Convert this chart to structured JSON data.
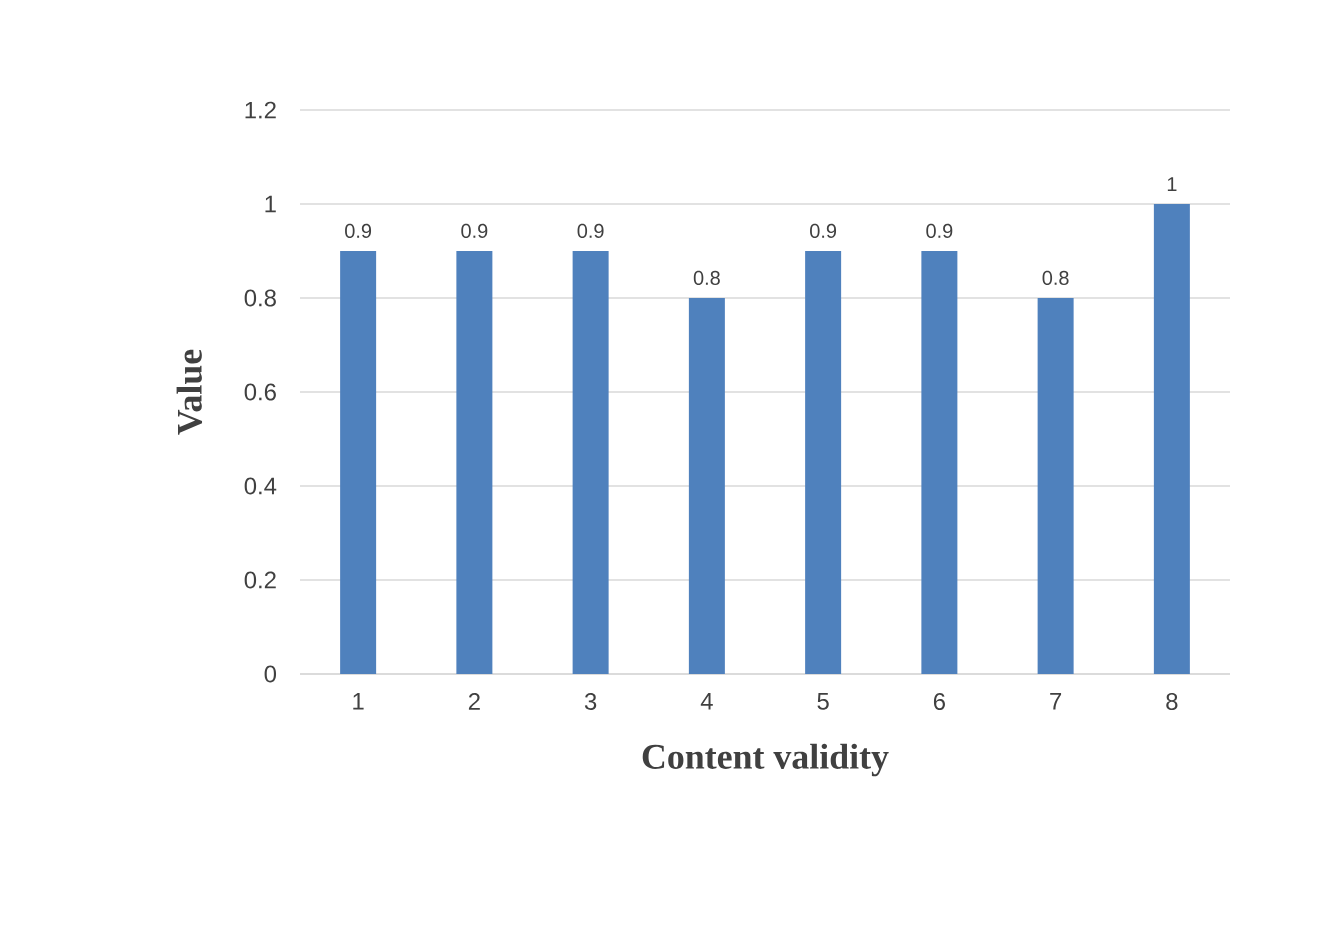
{
  "chart_data": {
    "type": "bar",
    "xlabel": "Content validity",
    "ylabel": "Value",
    "categories": [
      "1",
      "2",
      "3",
      "4",
      "5",
      "6",
      "7",
      "8"
    ],
    "values": [
      0.9,
      0.9,
      0.9,
      0.8,
      0.9,
      0.9,
      0.8,
      1
    ],
    "color": "#4f81bd",
    "ylim": [
      0,
      1.2
    ],
    "yticks": [
      0,
      0.2,
      0.4,
      0.6,
      0.8,
      1,
      1.2
    ],
    "grid": "y",
    "data_labels": true
  }
}
